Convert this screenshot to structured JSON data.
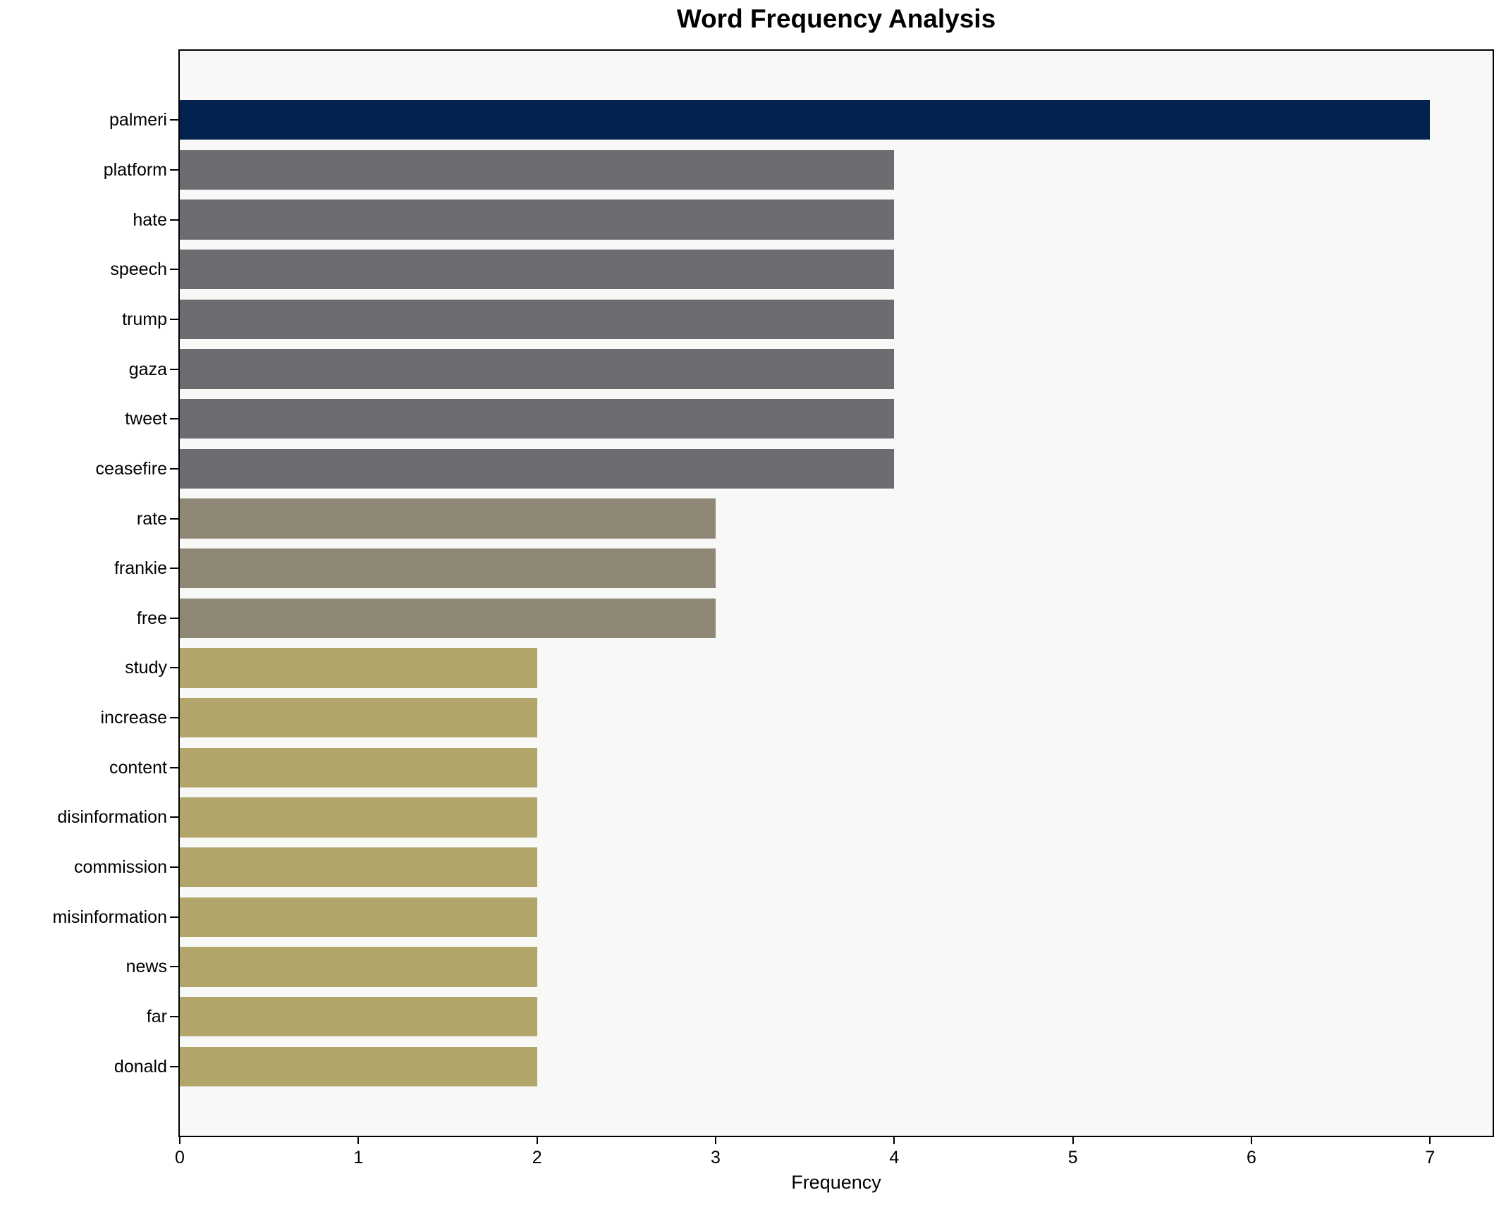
{
  "figure": {
    "background": "#ffffff",
    "plot_background": "#f8f8f7",
    "spine_color": "#000000"
  },
  "chart_data": {
    "type": "bar",
    "orientation": "horizontal",
    "title": "Word Frequency Analysis",
    "xlabel": "Frequency",
    "ylabel": "",
    "grid": false,
    "legend": null,
    "categories": [
      "palmeri",
      "platform",
      "hate",
      "speech",
      "trump",
      "gaza",
      "tweet",
      "ceasefire",
      "rate",
      "frankie",
      "free",
      "study",
      "increase",
      "content",
      "disinformation",
      "commission",
      "misinformation",
      "news",
      "far",
      "donald"
    ],
    "values": [
      7,
      4,
      4,
      4,
      4,
      4,
      4,
      4,
      3,
      3,
      3,
      2,
      2,
      2,
      2,
      2,
      2,
      2,
      2,
      2
    ],
    "bar_colors": [
      "#03224d",
      "#6d6d71",
      "#6d6d71",
      "#6d6d71",
      "#6d6d71",
      "#6d6d71",
      "#6d6d71",
      "#6d6d71",
      "#8f8877",
      "#8f8877",
      "#8f8877",
      "#b1a56a",
      "#b1a56a",
      "#b1a56a",
      "#b1a56a",
      "#b1a56a",
      "#b1a56a",
      "#b1a56a",
      "#b1a56a",
      "#b1a56a"
    ],
    "color_tiers": {
      "value_7": "#03224d",
      "value_4": "#6d6d71",
      "value_3": "#8f8877",
      "value_2": "#b1a56a"
    },
    "x_ticks": [
      0,
      1,
      2,
      3,
      4,
      5,
      6,
      7
    ],
    "xlim": [
      0,
      7.35
    ]
  }
}
